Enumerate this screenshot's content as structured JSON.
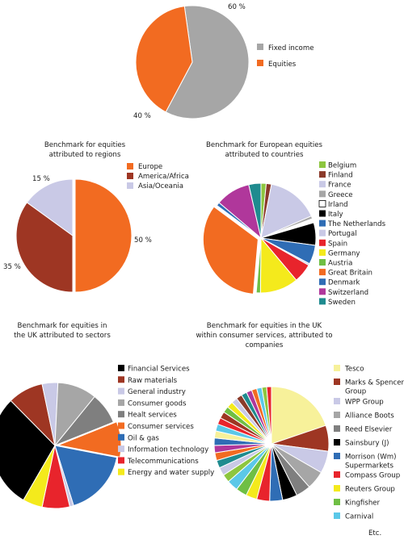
{
  "colors": {
    "orange": "#F26B21",
    "grey": "#A6A6A6",
    "darkred": "#9E3623",
    "lavender": "#C9C9E6",
    "black": "#000000",
    "midgrey": "#7F7F7F",
    "blue": "#2F6DB5",
    "red": "#E8242C",
    "yellow": "#F4EA1C",
    "lightgrey": "#C8C8C8",
    "green": "#6FBF44",
    "teal": "#1F8B8F",
    "magenta": "#B0379B",
    "palegreen": "#8DC63F",
    "brown": "#8B3A2A",
    "cyan": "#5BC8E8",
    "paleyellow": "#F7F19A"
  },
  "chart_data": [
    {
      "type": "pie",
      "title": "",
      "labels": [
        "Fixed income",
        "Equities"
      ],
      "values": [
        60,
        40
      ],
      "value_labels": [
        "60 %",
        "40 %"
      ],
      "colors": [
        "#A6A6A6",
        "#F26B21"
      ],
      "legend": "right"
    },
    {
      "type": "pie",
      "title": "Benchmark for equities attributed to regions",
      "title_lines": [
        "Benchmark for equities",
        "attributed to regions"
      ],
      "labels": [
        "Europe",
        "America/Africa",
        "Asia/Oceania"
      ],
      "values": [
        50,
        35,
        15
      ],
      "value_labels": [
        "50 %",
        "35 %",
        "15 %"
      ],
      "colors": [
        "#F26B21",
        "#9E3623",
        "#C9C9E6"
      ],
      "legend": "top-right"
    },
    {
      "type": "pie",
      "title": "Benchmark for European equities attributed to countries",
      "title_lines": [
        "Benchmark for European equities",
        "attributed to countries"
      ],
      "labels": [
        "Belgium",
        "Finland",
        "France",
        "Greece",
        "Irland",
        "Italy",
        "The Netherlands",
        "Portugal",
        "Spain",
        "Germany",
        "Austria",
        "Great Britain",
        "Denmark",
        "Switzerland",
        "Sweden"
      ],
      "values": [
        1.5,
        1.5,
        15,
        0.8,
        1.2,
        6.5,
        5.5,
        0.5,
        5.5,
        11,
        1.2,
        33,
        1,
        10,
        3.5
      ],
      "colors": [
        "#8DC63F",
        "#8B3A2A",
        "#C9C9E6",
        "#A6A6A6",
        "#ffffff",
        "#000000",
        "#2F6DB5",
        "#C9C9E6",
        "#E8242C",
        "#F4EA1C",
        "#6FBF44",
        "#F26B21",
        "#2F6DB5",
        "#B0379B",
        "#1F8B8F"
      ],
      "legend": "right"
    },
    {
      "type": "pie",
      "title": "Benchmark for equities in the UK attributed to sectors",
      "title_lines": [
        "Benchmark for equities in",
        "the UK attributed to sectors"
      ],
      "labels": [
        "Financial Services",
        "Raw materials",
        "General industry",
        "Consumer goods",
        "Healt services",
        "Consumer services",
        "Oil & gas",
        "Information technology",
        "Telecommunications",
        "Energy and water supply"
      ],
      "values": [
        29,
        9,
        4,
        10,
        8,
        9,
        17,
        1,
        7,
        5
      ],
      "colors": [
        "#000000",
        "#9E3623",
        "#C9C9E6",
        "#A6A6A6",
        "#7F7F7F",
        "#F26B21",
        "#2F6DB5",
        "#C9C9E6",
        "#E8242C",
        "#F4EA1C"
      ],
      "legend": "right"
    },
    {
      "type": "pie",
      "title": "Benchmark for equities in the UK within consumer services, attributed to companies",
      "title_lines": [
        "Benchmark for equities in the UK",
        "within consumer services, attributed to",
        "companies"
      ],
      "labels": [
        "Tesco",
        "Marks & Spencer Group",
        "WPP Group",
        "Alliance Boots",
        "Reed Elsevier",
        "Sainsbury (J)",
        "Morrison (Wm) Supermarkets",
        "Compass Group",
        "Reuters Group",
        "Kingfisher",
        "Carnival"
      ],
      "legend_lines": [
        [
          "Tesco"
        ],
        [
          "Marks & Spencer",
          "Group"
        ],
        [
          "WPP Group"
        ],
        [
          "Alliance Boots"
        ],
        [
          "Reed Elsevier"
        ],
        [
          "Sainsbury (J)"
        ],
        [
          "Morrison (Wm)",
          "Supermarkets"
        ],
        [
          "Compass Group"
        ],
        [
          "Reuters Group"
        ],
        [
          "Kingfisher"
        ],
        [
          "Carnival"
        ]
      ],
      "values": [
        19,
        7,
        6,
        5,
        4,
        4,
        3.5,
        3.5,
        3,
        3,
        3
      ],
      "colors": [
        "#F7F19A",
        "#9E3623",
        "#C9C9E6",
        "#A6A6A6",
        "#7F7F7F",
        "#000000",
        "#2F6DB5",
        "#E8242C",
        "#F4EA1C",
        "#6FBF44",
        "#5BC8E8"
      ],
      "other_label": "Etc.",
      "other_slices": [
        2.2,
        2.2,
        2.1,
        2.1,
        2,
        2,
        1.9,
        1.9,
        1.8,
        1.8,
        1.7,
        1.7,
        1.6,
        1.6,
        1.5,
        1.5,
        1.4,
        1.4,
        1.3,
        1.3
      ],
      "other_colors": [
        "#8DC63F",
        "#C9C9E6",
        "#1F8B8F",
        "#F26B21",
        "#B0379B",
        "#2F6DB5",
        "#F7F19A",
        "#5BC8E8",
        "#E8242C",
        "#9E3623",
        "#6FBF44",
        "#F4EA1C",
        "#C9C9E6",
        "#8B3A2A",
        "#1F8B8F",
        "#B0379B",
        "#F26B21",
        "#5BC8E8",
        "#8DC63F",
        "#E8242C"
      ],
      "legend": "right"
    }
  ]
}
